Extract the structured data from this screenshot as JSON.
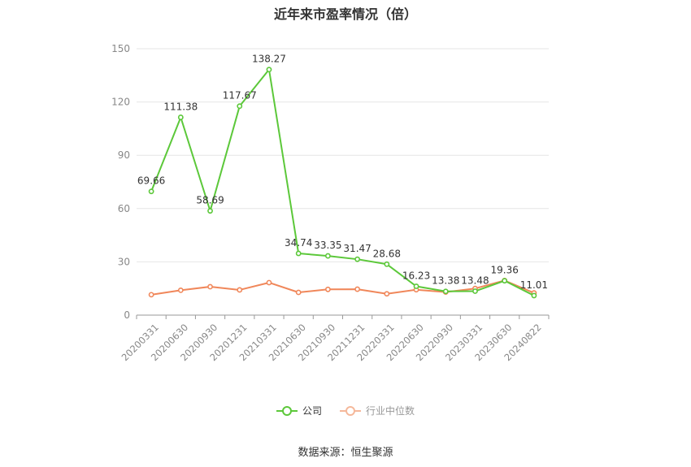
{
  "chart_data": {
    "type": "line",
    "title": "近年来市盈率情况（倍）",
    "categories": [
      "20200331",
      "20200630",
      "20200930",
      "20201231",
      "20210331",
      "20210630",
      "20210930",
      "20211231",
      "20220331",
      "20220630",
      "20220930",
      "20230331",
      "20230630",
      "20240822"
    ],
    "ylim": [
      0,
      150
    ],
    "yticks": [
      0,
      30,
      60,
      90,
      120,
      150
    ],
    "grid": true,
    "legend_position": "bottom",
    "series": [
      {
        "name": "公司",
        "color": "#5cc83a",
        "values": [
          69.66,
          111.38,
          58.69,
          117.67,
          138.27,
          34.74,
          33.35,
          31.47,
          28.68,
          16.23,
          13.38,
          13.48,
          19.36,
          11.01
        ],
        "labels": [
          "69.66",
          "111.38",
          "58.69",
          "117.67",
          "138.27",
          "34.74",
          "33.35",
          "31.47",
          "28.68",
          "16.23",
          "13.38",
          "13.48",
          "19.36",
          "11.01"
        ]
      },
      {
        "name": "行业中位数",
        "color": "#f0875a",
        "values": [
          11.5,
          14.0,
          16.0,
          14.2,
          18.3,
          12.8,
          14.5,
          14.6,
          12.0,
          14.3,
          13.0,
          15.0,
          19.5,
          12.5
        ]
      }
    ]
  },
  "legend": {
    "company_label": "公司",
    "industry_label": "行业中位数"
  },
  "source": "数据来源：恒生聚源"
}
